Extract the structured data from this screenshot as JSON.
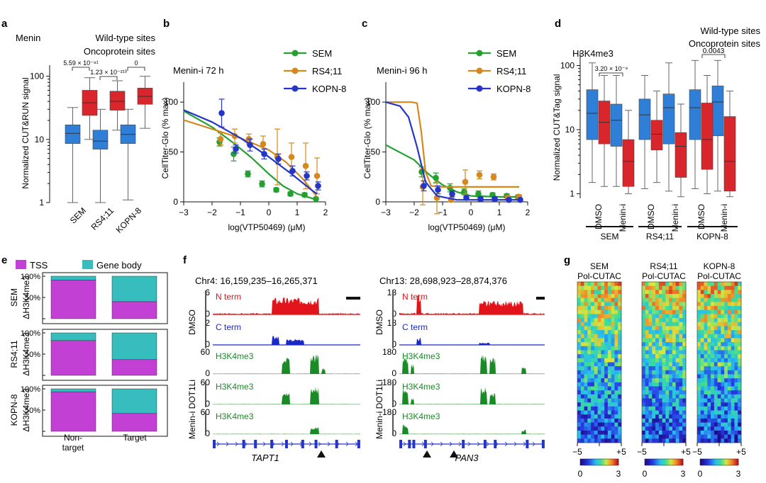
{
  "chart_data": [
    {
      "panel": "a",
      "type": "box",
      "title": "Menin",
      "legend": [
        {
          "name": "Wild-type sites",
          "color": "#2f7fd8"
        },
        {
          "name": "Oncoprotein sites",
          "color": "#d9262c"
        }
      ],
      "ylabel": "Normalized CUT&RUN signal",
      "yscale": "log",
      "ylim": [
        1,
        150
      ],
      "yticks": [
        {
          "v": 1,
          "t": "1"
        },
        {
          "v": 10,
          "t": "10"
        },
        {
          "v": 100,
          "t": "100"
        }
      ],
      "categories": [
        "SEM",
        "RS4;11",
        "KOPN-8"
      ],
      "pvalues": [
        "5.59 × 10⁻⁸¹",
        "1.23 × 10⁻²¹³",
        "0"
      ],
      "series": [
        {
          "name": "Wild-type sites",
          "color": "#2f7fd8",
          "boxes": [
            {
              "lw": 1,
              "q1": 8.6,
              "med": 12.5,
              "q3": 17,
              "uw": 32
            },
            {
              "lw": 1,
              "q1": 7,
              "med": 9.4,
              "q3": 14,
              "uw": 30
            },
            {
              "lw": 1.1,
              "q1": 8.6,
              "med": 12,
              "q3": 17,
              "uw": 30
            }
          ]
        },
        {
          "name": "Oncoprotein sites",
          "color": "#d9262c",
          "boxes": [
            {
              "lw": 10,
              "q1": 24,
              "med": 38,
              "q3": 60,
              "uw": 95
            },
            {
              "lw": 14,
              "q1": 29,
              "med": 40,
              "q3": 58,
              "uw": 85
            },
            {
              "lw": 15,
              "q1": 36,
              "med": 48,
              "q3": 65,
              "uw": 100
            }
          ]
        }
      ]
    },
    {
      "panel": "b",
      "type": "line",
      "title": "Menin-i 72 h",
      "xlabel": "log(VTP50469) (μM)",
      "ylabel": "CellTiter-Glo (% max)",
      "xlim": [
        -3,
        2
      ],
      "ylim": [
        0,
        120
      ],
      "xticks": [
        -3,
        -2,
        -1,
        0,
        1,
        2
      ],
      "yticks": [
        0,
        50,
        100
      ],
      "series": [
        {
          "name": "SEM",
          "color": "#23a02f",
          "points": [
            [
              -1.7,
              60
            ],
            [
              -1.2,
              48
            ],
            [
              -0.7,
              28
            ],
            [
              -0.2,
              18
            ],
            [
              0.3,
              12
            ],
            [
              0.8,
              8
            ],
            [
              1.3,
              7
            ],
            [
              1.7,
              3
            ]
          ],
          "errors": [
            4,
            7,
            3,
            3,
            2,
            2,
            2,
            1
          ],
          "curve": [
            [
              -3,
              91
            ],
            [
              -2,
              75
            ],
            [
              -1.2,
              58
            ],
            [
              -0.6,
              44
            ],
            [
              0,
              28
            ],
            [
              0.5,
              16
            ],
            [
              1,
              8
            ],
            [
              1.7,
              2
            ]
          ]
        },
        {
          "name": "RS4;11",
          "color": "#d4881e",
          "points": [
            [
              -1.7,
              63
            ],
            [
              -1.2,
              66
            ],
            [
              -0.7,
              63
            ],
            [
              -0.2,
              58
            ],
            [
              0.3,
              45
            ],
            [
              0.8,
              45
            ],
            [
              1.3,
              36
            ],
            [
              1.7,
              26
            ]
          ],
          "errors": [
            6,
            7,
            5,
            8,
            28,
            14,
            23,
            18
          ],
          "curve": [
            [
              -3,
              82
            ],
            [
              -2,
              73
            ],
            [
              -1,
              64
            ],
            [
              0,
              52
            ],
            [
              0.6,
              40
            ],
            [
              1.2,
              23
            ],
            [
              1.7,
              5
            ]
          ]
        },
        {
          "name": "KOPN-8",
          "color": "#2436c8",
          "points": [
            [
              -1.7,
              89
            ],
            [
              -1.2,
              53
            ],
            [
              -0.7,
              57
            ],
            [
              -0.2,
              48
            ],
            [
              0.3,
              43
            ],
            [
              0.8,
              31
            ],
            [
              1.3,
              26
            ],
            [
              1.7,
              16
            ]
          ],
          "errors": [
            14,
            4,
            6,
            5,
            5,
            5,
            4,
            4
          ],
          "curve": [
            [
              -3,
              92
            ],
            [
              -2,
              80
            ],
            [
              -1,
              64
            ],
            [
              0,
              45
            ],
            [
              0.8,
              28
            ],
            [
              1.5,
              12
            ],
            [
              1.7,
              8
            ]
          ]
        }
      ]
    },
    {
      "panel": "c",
      "type": "line",
      "title": "Menin-i 96 h",
      "xlabel": "log(VTP50469) (μM)",
      "ylabel": "CellTiter-Glo (% max)",
      "xlim": [
        -3,
        2
      ],
      "ylim": [
        0,
        120
      ],
      "xticks": [
        -3,
        -2,
        -1,
        0,
        1,
        2
      ],
      "yticks": [
        0,
        50,
        100
      ],
      "series": [
        {
          "name": "SEM",
          "color": "#23a02f",
          "points": [
            [
              -1.7,
              30
            ],
            [
              -1.2,
              24
            ],
            [
              -0.7,
              14
            ],
            [
              -0.2,
              10
            ],
            [
              0.3,
              8
            ],
            [
              0.8,
              7
            ],
            [
              1.3,
              6
            ],
            [
              1.7,
              5
            ]
          ],
          "errors": [
            5,
            5,
            4,
            3,
            3,
            2,
            2,
            2
          ],
          "curve": [
            [
              -3,
              57
            ],
            [
              -2,
              42
            ],
            [
              -1.5,
              28
            ],
            [
              -1,
              17
            ],
            [
              -0.5,
              10
            ],
            [
              0,
              6
            ],
            [
              1,
              5
            ],
            [
              1.7,
              5
            ]
          ]
        },
        {
          "name": "RS4;11",
          "color": "#d4881e",
          "points": [
            [
              -1.7,
              15
            ],
            [
              -1.2,
              4
            ],
            [
              -0.7,
              2
            ],
            [
              -0.2,
              20
            ],
            [
              0.3,
              27
            ],
            [
              0.8,
              25
            ],
            [
              1.3,
              4
            ],
            [
              1.7,
              5
            ]
          ],
          "errors": [
            18,
            16,
            2,
            12,
            4,
            3,
            2,
            2
          ],
          "curve": [
            [
              -3,
              100
            ],
            [
              -2.1,
              100
            ],
            [
              -1.9,
              99
            ],
            [
              -1.75,
              70
            ],
            [
              -1.6,
              30
            ],
            [
              -1.4,
              16
            ],
            [
              -1,
              15
            ],
            [
              1.7,
              15
            ]
          ]
        },
        {
          "name": "KOPN-8",
          "color": "#2436c8",
          "points": [
            [
              -1.7,
              16
            ],
            [
              -1.2,
              12
            ],
            [
              -0.7,
              8
            ],
            [
              -0.2,
              4
            ],
            [
              0.3,
              3
            ],
            [
              0.8,
              3
            ],
            [
              1.3,
              2
            ],
            [
              1.7,
              2
            ]
          ],
          "errors": [
            5,
            4,
            3,
            2,
            2,
            2,
            1,
            1
          ],
          "curve": [
            [
              -3,
              100
            ],
            [
              -2.5,
              96
            ],
            [
              -2.2,
              85
            ],
            [
              -1.9,
              55
            ],
            [
              -1.6,
              20
            ],
            [
              -1.2,
              6
            ],
            [
              -0.5,
              2
            ],
            [
              1.7,
              2
            ]
          ]
        }
      ]
    },
    {
      "panel": "d",
      "type": "box",
      "title": "H3K4me3",
      "legend": [
        {
          "name": "Wild-type sites",
          "color": "#2f7fd8"
        },
        {
          "name": "Oncoprotein sites",
          "color": "#d9262c"
        }
      ],
      "ylabel": "Normalized CUT&Tag signal",
      "yscale": "log",
      "ylim": [
        0.85,
        160
      ],
      "yticks": [
        {
          "v": 1,
          "t": "1"
        },
        {
          "v": 10,
          "t": "10"
        },
        {
          "v": 100,
          "t": "100"
        }
      ],
      "conditions": [
        "DMSO",
        "Menin-i",
        "DMSO",
        "Menin-i",
        "DMSO",
        "Menin-i"
      ],
      "groups": [
        "SEM",
        "RS4;11",
        "KOPN-8"
      ],
      "pvalues": [
        "3.20 × 10⁻⁹",
        "0.0043"
      ],
      "series": [
        {
          "name": "Wild-type sites",
          "color": "#2f7fd8",
          "boxes": [
            {
              "lw": 1.5,
              "q1": 7,
              "med": 18,
              "q3": 42,
              "uw": 110
            },
            {
              "lw": 1.3,
              "q1": 5.5,
              "med": 14,
              "q3": 25,
              "uw": 70
            },
            {
              "lw": 1.2,
              "q1": 7,
              "med": 17,
              "q3": 30,
              "uw": 70
            },
            {
              "lw": 1.1,
              "q1": 6,
              "med": 22,
              "q3": 36,
              "uw": 110
            },
            {
              "lw": 1.2,
              "q1": 7,
              "med": 22,
              "q3": 42,
              "uw": 120
            },
            {
              "lw": 1.1,
              "q1": 8,
              "med": 27,
              "q3": 48,
              "uw": 120
            }
          ]
        },
        {
          "name": "Oncoprotein sites",
          "color": "#d9262c",
          "boxes": [
            {
              "lw": 1.3,
              "q1": 6,
              "med": 13,
              "q3": 28,
              "uw": 70
            },
            {
              "lw": 1,
              "q1": 1.3,
              "med": 3.2,
              "q3": 7,
              "uw": 20
            },
            {
              "lw": 1.5,
              "q1": 4.8,
              "med": 8.5,
              "q3": 14,
              "uw": 40
            },
            {
              "lw": 0.9,
              "q1": 1.8,
              "med": 5.5,
              "q3": 9,
              "uw": 25
            },
            {
              "lw": 1,
              "q1": 2.4,
              "med": 7,
              "q3": 26,
              "uw": 70
            },
            {
              "lw": 0.9,
              "q1": 1.1,
              "med": 3.2,
              "q3": 16,
              "uw": 40
            }
          ]
        }
      ]
    },
    {
      "panel": "e",
      "type": "stacked_bar",
      "legend": [
        {
          "name": "TSS",
          "color": "#c340d4"
        },
        {
          "name": "Gene body",
          "color": "#37bdbd"
        }
      ],
      "categories": [
        "Non-target",
        "Target"
      ],
      "yticks": [
        "0",
        "50%",
        "100%"
      ],
      "rows": [
        {
          "label": "SEM",
          "sublabel": "ΔH3K4me3",
          "tss": [
            91,
            40
          ]
        },
        {
          "label": "RS4;11",
          "sublabel": "ΔH3K4me3",
          "tss": [
            82,
            37
          ]
        },
        {
          "label": "KOPN-8",
          "sublabel": "ΔH3K4me3",
          "tss": [
            93,
            42
          ]
        }
      ]
    },
    {
      "panel": "f",
      "type": "genome_tracks",
      "loci": [
        {
          "coords": "Chr4: 16,159,235–16,265,371",
          "gene": "TAPT1",
          "scales": [
            "6",
            "2",
            "60",
            "60",
            "60"
          ]
        },
        {
          "coords": "Chr13: 28,698,923–28,874,376",
          "gene": "PAN3",
          "scales": [
            "18",
            "18",
            "180",
            "180",
            "180"
          ]
        }
      ],
      "tracks": [
        {
          "name": "N term",
          "color": "#e1141a"
        },
        {
          "name": "C term",
          "color": "#1a28c8"
        },
        {
          "name": "H3K4me3",
          "color": "#1a8a26"
        },
        {
          "name": "H3K4me3",
          "color": "#1a8a26"
        },
        {
          "name": "H3K4me3",
          "color": "#1a8a26"
        }
      ],
      "conditions": [
        "DMSO",
        "DOT1Li",
        "Menin-i"
      ]
    },
    {
      "panel": "g",
      "type": "heatmap",
      "titles": [
        {
          "a": "SEM",
          "b": "Pol-CUTAC"
        },
        {
          "a": "RS4;11",
          "b": "Pol-CUTAC"
        },
        {
          "a": "KOPN-8",
          "b": "Pol-CUTAC"
        }
      ],
      "xticks": [
        "−5",
        "+5"
      ],
      "colorbar": {
        "min": "0",
        "max": "3"
      }
    }
  ]
}
